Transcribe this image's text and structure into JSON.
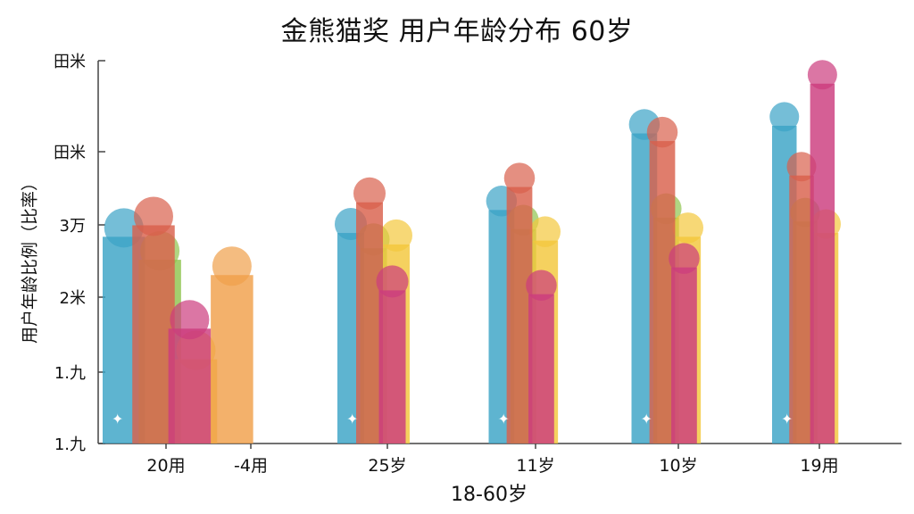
{
  "chart_data": {
    "type": "bar",
    "title": "金熊猫奖 用户年龄分布 60岁",
    "ylabel": "用户年龄比例（比率）",
    "xlabel": "18-60岁",
    "y_tick_labels": [
      "1.九",
      "1.九",
      "2米",
      "3万",
      "田米",
      "田米"
    ],
    "y_tick_values": [
      0,
      1,
      2,
      3,
      4,
      5
    ],
    "ylim": [
      0,
      5
    ],
    "categories": [
      "20用",
      "-4用",
      "25岁",
      "11岁",
      "10岁",
      "19用"
    ],
    "series": [
      {
        "color": "#3ba3c6",
        "values": [
          2.7,
          0,
          2.75,
          3.05,
          4.05,
          4.15
        ]
      },
      {
        "color": "#8fc54e",
        "values": [
          2.4,
          0,
          2.55,
          2.8,
          2.95,
          2.9
        ]
      },
      {
        "color": "#f3c73c",
        "values": [
          1.1,
          0,
          2.6,
          2.65,
          2.7,
          2.75
        ]
      },
      {
        "color": "#f0a04a",
        "values": [
          2.2,
          0,
          0,
          0,
          0,
          0
        ]
      },
      {
        "color": "#d9604c",
        "values": [
          2.85,
          0,
          3.15,
          3.35,
          3.95,
          3.5
        ]
      },
      {
        "color": "#cc3c7e",
        "values": [
          1.5,
          0,
          2.0,
          1.95,
          2.3,
          4.7
        ]
      }
    ],
    "grid": false,
    "legend": "none"
  }
}
